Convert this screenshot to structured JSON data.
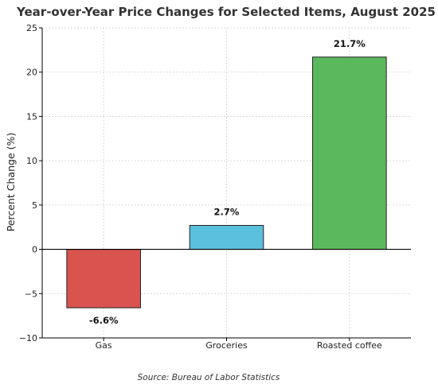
{
  "chart_data": {
    "type": "bar",
    "title": "Year-over-Year Price Changes for Selected Items, August 2025",
    "xlabel": "",
    "ylabel": "Percent Change (%)",
    "categories": [
      "Gas",
      "Groceries",
      "Roasted coffee"
    ],
    "values": [
      -6.6,
      2.7,
      21.7
    ],
    "data_labels": [
      "-6.6%",
      "2.7%",
      "21.7%"
    ],
    "colors": [
      "#d9534f",
      "#5bc0de",
      "#5cb85c"
    ],
    "ylim": [
      -10,
      25
    ],
    "yticks": [
      25,
      20,
      15,
      10,
      5,
      0,
      -5,
      -10
    ],
    "ytick_labels": [
      "25",
      "20",
      "15",
      "10",
      "5",
      "0",
      "−5",
      "−10"
    ],
    "grid": true,
    "legend": "none",
    "source": "Source: Bureau of Labor Statistics"
  }
}
